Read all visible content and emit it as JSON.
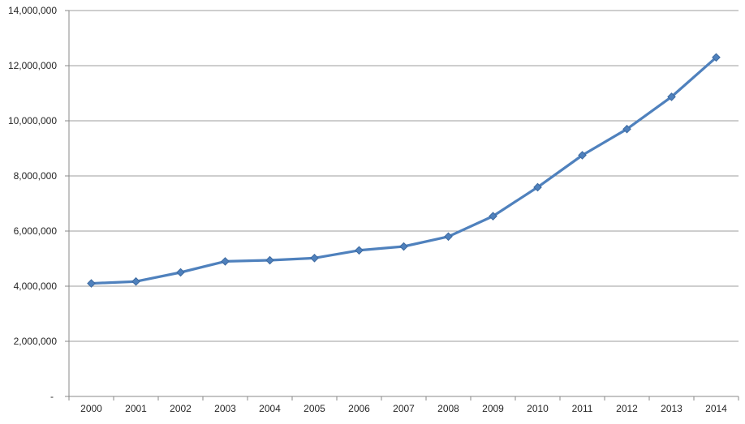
{
  "chart_data": {
    "type": "line",
    "title": "",
    "xlabel": "",
    "ylabel": "",
    "legend": "none",
    "grid": true,
    "marker": "diamond",
    "categories": [
      "2000",
      "2001",
      "2002",
      "2003",
      "2004",
      "2005",
      "2006",
      "2007",
      "2008",
      "2009",
      "2010",
      "2011",
      "2012",
      "2013",
      "2014"
    ],
    "values": [
      4100000,
      4170000,
      4500000,
      4900000,
      4940000,
      5020000,
      5300000,
      5440000,
      5800000,
      6540000,
      7590000,
      8750000,
      9700000,
      10870000,
      12300000
    ],
    "ylim": [
      0,
      14000000
    ],
    "y_tick_interval": 2000000,
    "y_tick_labels": [
      "-",
      "2,000,000",
      "4,000,000",
      "6,000,000",
      "8,000,000",
      "10,000,000",
      "12,000,000",
      "14,000,000"
    ],
    "colors": {
      "line": "#4f81bd",
      "marker_fill": "#4f81bd",
      "marker_border": "#3c699f",
      "gridline": "#9d9d9d",
      "axis": "#898989",
      "label_text": "#262626",
      "background": "#ffffff"
    }
  }
}
